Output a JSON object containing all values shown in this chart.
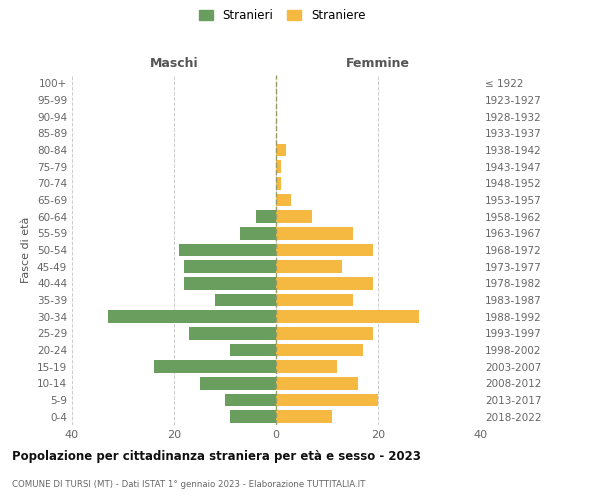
{
  "age_groups": [
    "0-4",
    "5-9",
    "10-14",
    "15-19",
    "20-24",
    "25-29",
    "30-34",
    "35-39",
    "40-44",
    "45-49",
    "50-54",
    "55-59",
    "60-64",
    "65-69",
    "70-74",
    "75-79",
    "80-84",
    "85-89",
    "90-94",
    "95-99",
    "100+"
  ],
  "birth_years": [
    "2018-2022",
    "2013-2017",
    "2008-2012",
    "2003-2007",
    "1998-2002",
    "1993-1997",
    "1988-1992",
    "1983-1987",
    "1978-1982",
    "1973-1977",
    "1968-1972",
    "1963-1967",
    "1958-1962",
    "1953-1957",
    "1948-1952",
    "1943-1947",
    "1938-1942",
    "1933-1937",
    "1928-1932",
    "1923-1927",
    "≤ 1922"
  ],
  "maschi": [
    9,
    10,
    15,
    24,
    9,
    17,
    33,
    12,
    18,
    18,
    19,
    7,
    4,
    0,
    0,
    0,
    0,
    0,
    0,
    0,
    0
  ],
  "femmine": [
    11,
    20,
    16,
    12,
    17,
    19,
    28,
    15,
    19,
    13,
    19,
    15,
    7,
    3,
    1,
    1,
    2,
    0,
    0,
    0,
    0
  ],
  "maschi_color": "#6a9e5e",
  "femmine_color": "#f5b942",
  "background_color": "#ffffff",
  "grid_color": "#cccccc",
  "title": "Popolazione per cittadinanza straniera per età e sesso - 2023",
  "subtitle": "COMUNE DI TURSI (MT) - Dati ISTAT 1° gennaio 2023 - Elaborazione TUTTITALIA.IT",
  "ylabel_left": "Fasce di età",
  "xlabel_left": "Maschi",
  "xlabel_top_right": "Femmine",
  "legend_maschi": "Stranieri",
  "legend_femmine": "Straniere",
  "xlim": 40
}
